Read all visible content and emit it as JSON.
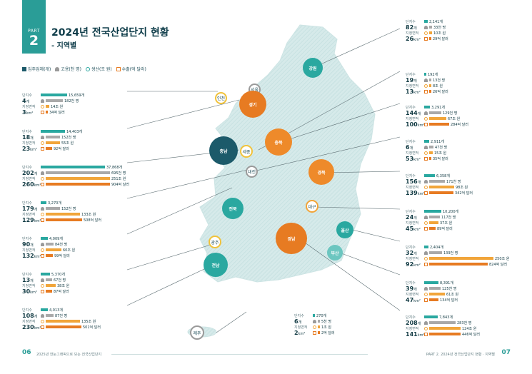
{
  "header": {
    "part_label": "PART",
    "part_number": "2",
    "title": "2024년 전국산업단지 현황",
    "subtitle": "- 지역별"
  },
  "legend": {
    "firms": "입주업체(개)",
    "employment": "고용(천 명)",
    "production": "생산(조 원)",
    "exports": "수출(억 달러)"
  },
  "labels": {
    "complex_count": "단지수",
    "designated_area": "지정면적"
  },
  "colors": {
    "teal": "#2a9d97",
    "orange": "#e77b22",
    "dark_teal": "#1c5a6a",
    "gray": "#a9a9a9",
    "yellow": "#f1a53a"
  },
  "regions": {
    "seoul": "서울",
    "incheon": "인천",
    "gyeonggi": "경기",
    "gangwon": "강원",
    "chungnam": "충남",
    "sejong": "세종",
    "chungbuk": "충북",
    "daejeon": "대전",
    "gyeongbuk": "경북",
    "daegu": "대구",
    "jeonbuk": "전북",
    "ulsan": "울산",
    "gyeongnam": "경남",
    "busan": "부산",
    "gwangju": "광주",
    "jeonnam": "전남",
    "jeju": "제주"
  },
  "cards": [
    {
      "complexes": "4",
      "unit": "개",
      "area": "3",
      "area_unit": "km²",
      "firms": "15,659개",
      "employment": "182천 명",
      "production": "14조 원",
      "exports": "34억 달러"
    },
    {
      "complexes": "18",
      "unit": "개",
      "area": "23",
      "area_unit": "km²",
      "firms": "14,403개",
      "employment": "152천 명",
      "production": "55조 원",
      "exports": "92억 달러"
    },
    {
      "complexes": "202",
      "unit": "개",
      "area": "260",
      "area_unit": "km²",
      "firms": "37,868개",
      "employment": "695천 명",
      "production": "251조 원",
      "exports": "904억 달러"
    },
    {
      "complexes": "179",
      "unit": "개",
      "area": "129",
      "area_unit": "km²",
      "firms": "3,270개",
      "employment": "152천 명",
      "production": "133조 원",
      "exports": "508억 달러"
    },
    {
      "complexes": "90",
      "unit": "개",
      "area": "132",
      "area_unit": "km²",
      "firms": "4,009개",
      "employment": "84천 명",
      "production": "60조 원",
      "exports": "99억 달러"
    },
    {
      "complexes": "13",
      "unit": "개",
      "area": "30",
      "area_unit": "km²",
      "firms": "5,370개",
      "employment": "67천 명",
      "production": "38조 원",
      "exports": "87억 달러"
    },
    {
      "complexes": "108",
      "unit": "개",
      "area": "230",
      "area_unit": "km²",
      "firms": "4,013개",
      "employment": "87천 명",
      "production": "135조 원",
      "exports": "501억 달러"
    },
    {
      "complexes": "6",
      "unit": "개",
      "area": "2",
      "area_unit": "km²",
      "firms": "270개",
      "employment": "5천 명",
      "production": "1조 원",
      "exports": "2억 달러"
    },
    {
      "complexes": "82",
      "unit": "개",
      "area": "26",
      "area_unit": "km²",
      "firms": "2,141개",
      "employment": "33천 명",
      "production": "10조 원",
      "exports": "29억 달러"
    },
    {
      "complexes": "19",
      "unit": "개",
      "area": "13",
      "area_unit": "km²",
      "firms": "192개",
      "employment": "13천 명",
      "production": "8조 원",
      "exports": "26억 달러"
    },
    {
      "complexes": "144",
      "unit": "개",
      "area": "100",
      "area_unit": "km²",
      "firms": "3,291개",
      "employment": "129천 명",
      "production": "67조 원",
      "exports": "284억 달러"
    },
    {
      "complexes": "6",
      "unit": "개",
      "area": "53",
      "area_unit": "km²",
      "firms": "2,911개",
      "employment": "47천 명",
      "production": "15조 원",
      "exports": "35억 달러"
    },
    {
      "complexes": "156",
      "unit": "개",
      "area": "139",
      "area_unit": "km²",
      "firms": "6,358개",
      "employment": "171천 명",
      "production": "98조 원",
      "exports": "342억 달러"
    },
    {
      "complexes": "24",
      "unit": "개",
      "area": "45",
      "area_unit": "km²",
      "firms": "10,200개",
      "employment": "117천 명",
      "production": "37조 원",
      "exports": "89억 달러"
    },
    {
      "complexes": "32",
      "unit": "개",
      "area": "92",
      "area_unit": "km²",
      "firms": "2,404개",
      "employment": "139천 명",
      "production": "250조 원",
      "exports": "824억 달러"
    },
    {
      "complexes": "39",
      "unit": "개",
      "area": "47",
      "area_unit": "km²",
      "firms": "8,391개",
      "employment": "125천 명",
      "production": "61조 원",
      "exports": "134억 달러"
    },
    {
      "complexes": "208",
      "unit": "개",
      "area": "141",
      "area_unit": "km²",
      "firms": "7,843개",
      "employment": "283천 명",
      "production": "124조 원",
      "exports": "446억 달러"
    }
  ],
  "footer": {
    "left_page": "06",
    "left_text": "2025년 한눈그래픽으로 보는 전국산업단지",
    "right_text": "PART 2. 2024년 전국산업단지 현황 · 지역별",
    "right_page": "07"
  }
}
